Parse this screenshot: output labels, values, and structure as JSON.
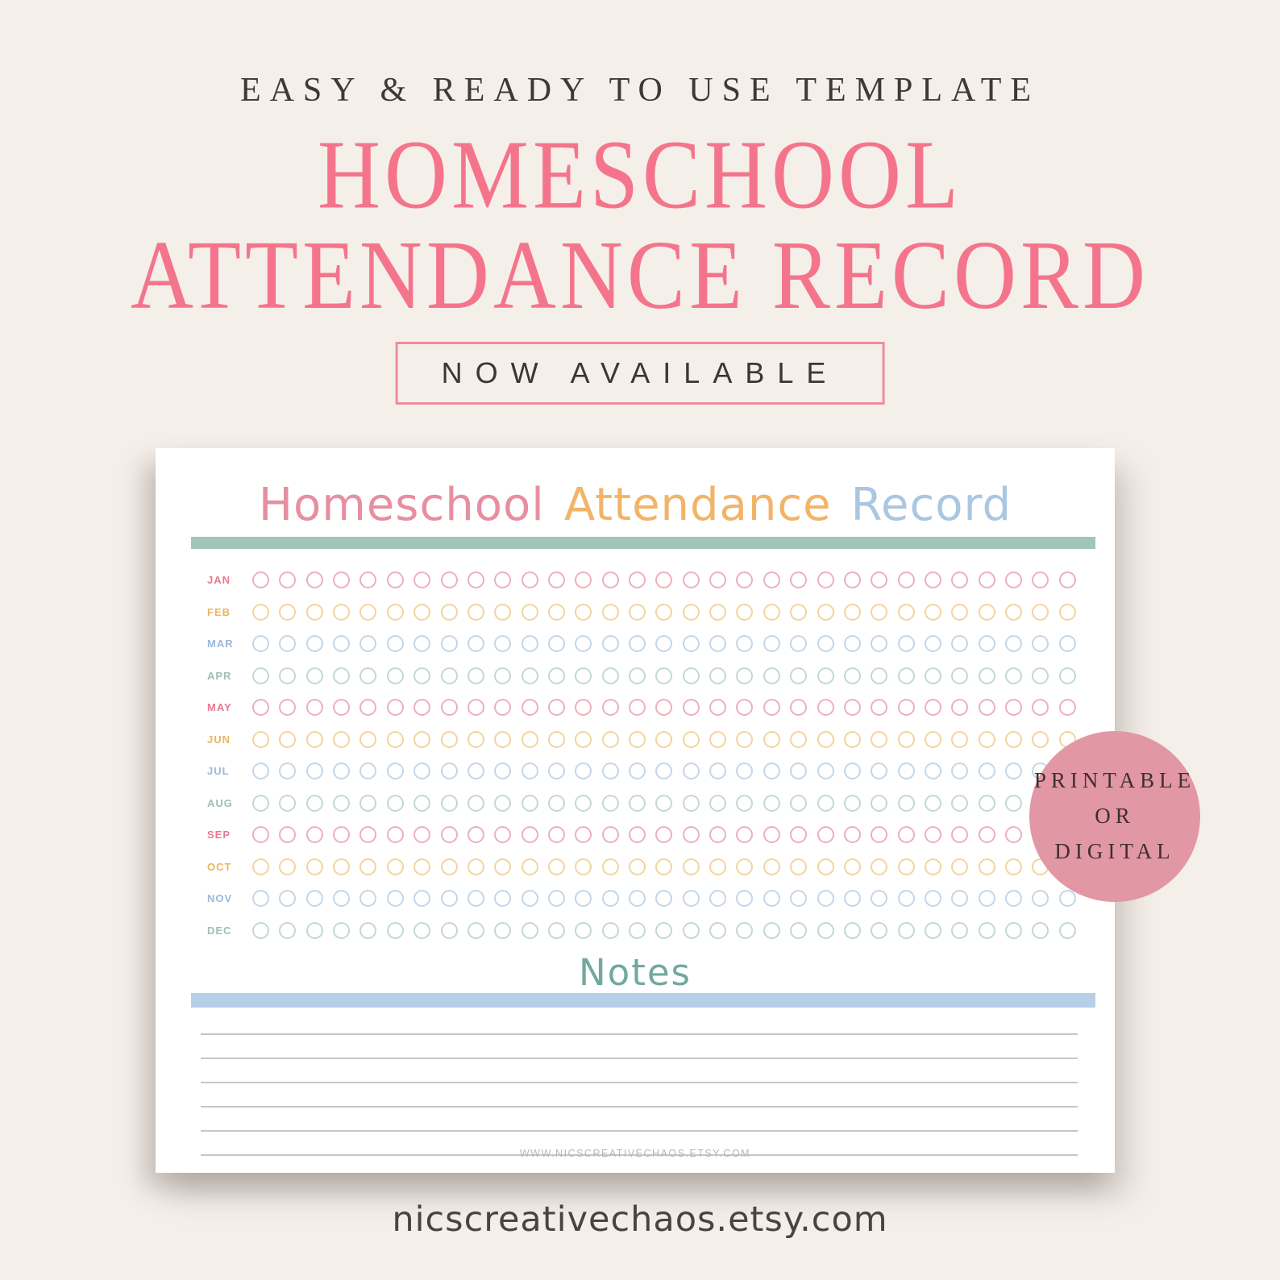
{
  "header": {
    "tagline": "EASY & READY TO USE TEMPLATE",
    "title_line1": "HOMESCHOOL",
    "title_line2": "ATTENDANCE RECORD",
    "availability_badge": "NOW AVAILABLE"
  },
  "sheet": {
    "title_word1": "Homeschool",
    "title_word2": "Attendance",
    "title_word3": "Record",
    "notes_label": "Notes",
    "footer_url": "WWW.NICSCREATIVECHAOS.ETSY.COM",
    "days_per_month": 31,
    "notes_line_count": 6,
    "months": [
      {
        "label": "JAN",
        "color": "pink"
      },
      {
        "label": "FEB",
        "color": "orange"
      },
      {
        "label": "MAR",
        "color": "blue"
      },
      {
        "label": "APR",
        "color": "green"
      },
      {
        "label": "MAY",
        "color": "pink"
      },
      {
        "label": "JUN",
        "color": "orange"
      },
      {
        "label": "JUL",
        "color": "blue"
      },
      {
        "label": "AUG",
        "color": "green"
      },
      {
        "label": "SEP",
        "color": "pink"
      },
      {
        "label": "OCT",
        "color": "orange"
      },
      {
        "label": "NOV",
        "color": "blue"
      },
      {
        "label": "DEC",
        "color": "green"
      }
    ]
  },
  "sticker": {
    "line1": "PRINTABLE",
    "line2": "OR",
    "line3": "DIGITAL"
  },
  "footer": {
    "store_url": "nicscreativechaos.etsy.com"
  },
  "colors": {
    "background": "#f5efea",
    "headline_pink": "#f4758b",
    "availability_border_pink": "#f08ba0",
    "sheet_title_pink": "#e78fa0",
    "sheet_title_orange": "#f2b469",
    "sheet_title_blue": "#aac7e2",
    "rule_teal": "#a2c5b8",
    "rule_blue": "#b7cfe6",
    "notes_teal": "#72a89f",
    "sticker_pink": "#e297a5",
    "month_label_colors": {
      "pink": "#e8798f",
      "orange": "#edb45e",
      "blue": "#9db9d9",
      "green": "#9fc0ae"
    },
    "day_circle_colors": {
      "pink": "#eeafbc",
      "orange": "#f3d49c",
      "blue": "#c3d6e9",
      "green": "#c2dacc"
    }
  }
}
